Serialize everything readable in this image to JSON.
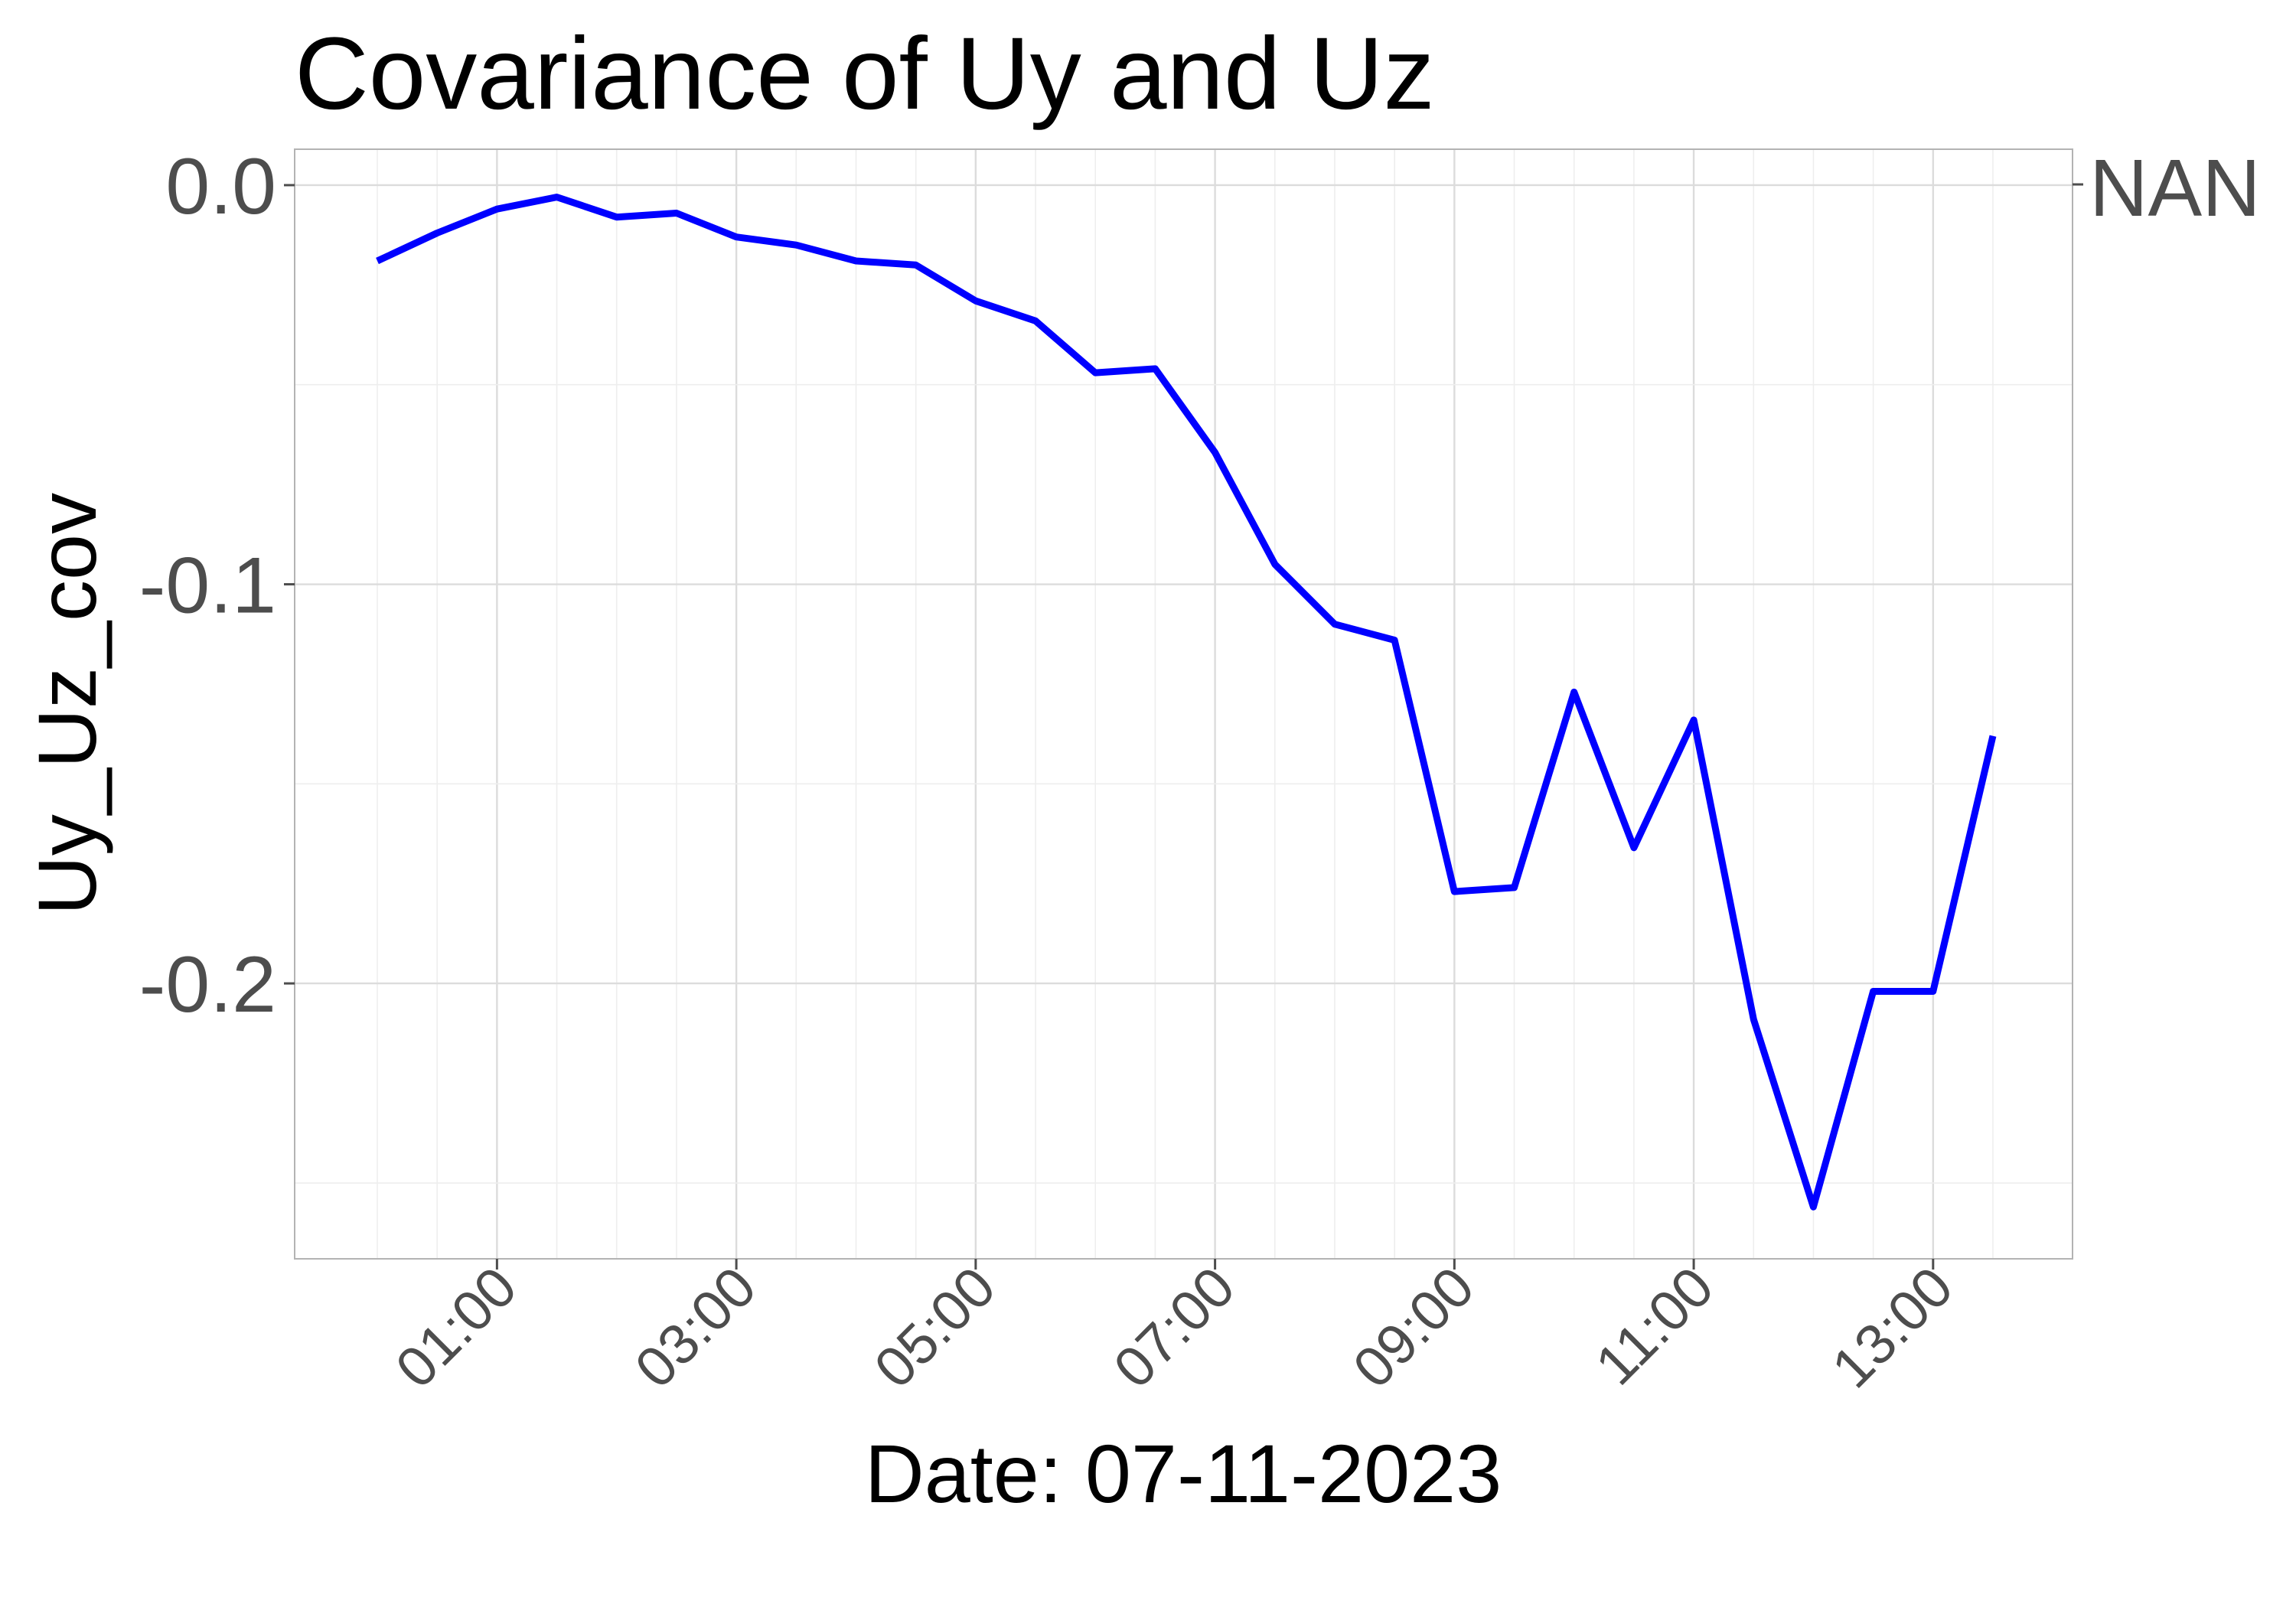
{
  "chart_data": {
    "type": "line",
    "title": "Covariance of Uy and Uz",
    "xlabel": "Date: 07-11-2023",
    "ylabel": "Uy_Uz_cov",
    "secondary_axis_label": "NAN",
    "x_ticks": [
      "01:00",
      "03:00",
      "05:00",
      "07:00",
      "09:00",
      "11:00",
      "13:00"
    ],
    "y_ticks": [
      "0.0",
      "-0.1",
      "-0.2"
    ],
    "xlim": [
      "00:00",
      "14:00"
    ],
    "ylim": [
      -0.269,
      0.009
    ],
    "grid": true,
    "line_color": "#0000ff",
    "series": [
      {
        "x": [
          "00:00",
          "00:30",
          "01:00",
          "01:30",
          "02:00",
          "02:30",
          "03:00",
          "03:30",
          "04:00",
          "04:30",
          "05:00",
          "05:30",
          "06:00",
          "06:30",
          "07:00",
          "07:30",
          "08:00",
          "08:30",
          "09:00",
          "09:30",
          "10:00",
          "10:30",
          "11:00",
          "11:30",
          "12:00",
          "12:30",
          "13:00",
          "13:30"
        ],
        "y": [
          -0.019,
          -0.012,
          -0.006,
          -0.003,
          -0.008,
          -0.007,
          -0.013,
          -0.015,
          -0.019,
          -0.02,
          -0.029,
          -0.034,
          -0.047,
          -0.046,
          -0.067,
          -0.095,
          -0.11,
          -0.114,
          -0.177,
          -0.176,
          -0.127,
          -0.166,
          -0.134,
          -0.209,
          -0.256,
          -0.202,
          -0.202,
          -0.138
        ]
      }
    ]
  }
}
